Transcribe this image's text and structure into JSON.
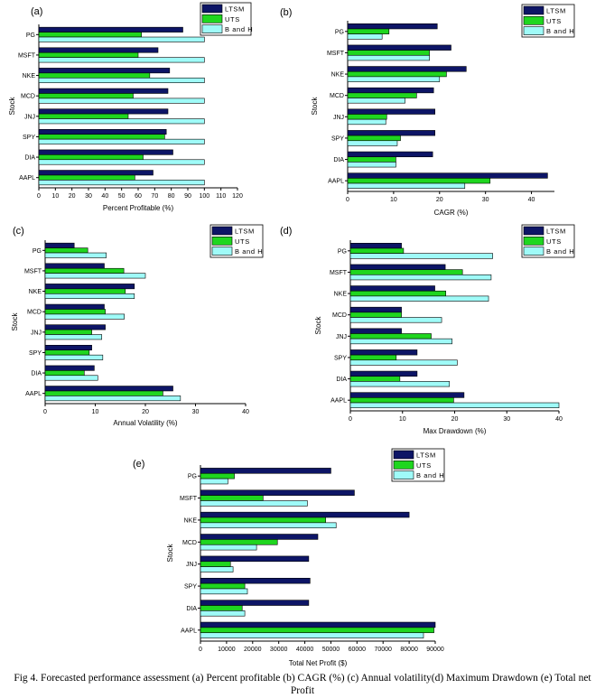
{
  "caption": "Fig 4. Forecasted performance assessment (a) Percent profitable (b) CAGR (%) (c) Annual volatility(d) Maximum Drawdown (e) Total net Profit",
  "colors": {
    "LTSM": "#0d1566",
    "UTS": "#1fd61f",
    "B and H": "#9ffbf8"
  },
  "chart_data": [
    {
      "panel": "(a)",
      "type": "bar",
      "categories": [
        "PG",
        "MSFT",
        "NKE",
        "MCD",
        "JNJ",
        "SPY",
        "DIA",
        "AAPL"
      ],
      "series": [
        {
          "name": "LTSM",
          "values": [
            87,
            72,
            79,
            78,
            78,
            77,
            81,
            69
          ]
        },
        {
          "name": "UTS",
          "values": [
            62,
            60,
            67,
            57,
            54,
            76,
            63,
            58
          ]
        },
        {
          "name": "B and H",
          "values": [
            100,
            100,
            100,
            100,
            100,
            100,
            100,
            100
          ]
        }
      ],
      "xlabel": "Percent Profitable (%)",
      "ylabel": "Stock",
      "xlim": [
        0,
        120
      ],
      "xticks": [
        "0",
        "10",
        "20",
        "30",
        "40",
        "50",
        "60",
        "70",
        "80",
        "90",
        "100",
        "110",
        "120"
      ],
      "legend": "top-right"
    },
    {
      "panel": "(b)",
      "type": "bar",
      "categories": [
        "PG",
        "MSFT",
        "NKE",
        "MCD",
        "JNJ",
        "SPY",
        "DIA",
        "AAPL"
      ],
      "series": [
        {
          "name": "LTSM",
          "values": [
            19.5,
            22.5,
            25.8,
            18.7,
            19,
            19,
            18.5,
            43.5
          ]
        },
        {
          "name": "UTS",
          "values": [
            9,
            17.8,
            21.5,
            15,
            8.5,
            11.5,
            10.5,
            31
          ]
        },
        {
          "name": "B and H",
          "values": [
            7.5,
            17.8,
            20,
            12.5,
            8.3,
            10.8,
            10.5,
            25.5
          ]
        }
      ],
      "xlabel": "CAGR (%)",
      "ylabel": "Stock",
      "xlim": [
        0,
        45
      ],
      "xticks": [
        "0",
        "10",
        "20",
        "30",
        "40"
      ],
      "legend": "top-right"
    },
    {
      "panel": "(c)",
      "type": "bar",
      "categories": [
        "PG",
        "MSFT",
        "NKE",
        "MCD",
        "JNJ",
        "SPY",
        "DIA",
        "AAPL"
      ],
      "series": [
        {
          "name": "LTSM",
          "values": [
            5.8,
            11.8,
            17.8,
            11.8,
            12,
            9.3,
            9.8,
            25.5
          ]
        },
        {
          "name": "UTS",
          "values": [
            8.5,
            15.7,
            16,
            12,
            9.3,
            8.8,
            7.8,
            23.5
          ]
        },
        {
          "name": "B and H",
          "values": [
            12.2,
            20,
            17.8,
            15.8,
            11.3,
            11.5,
            10.5,
            27
          ]
        }
      ],
      "xlabel": "Annual Volatility (%)",
      "ylabel": "Stock",
      "xlim": [
        0,
        40
      ],
      "xticks": [
        "0",
        "10",
        "20",
        "30",
        "40"
      ],
      "legend": "top-right"
    },
    {
      "panel": "(d)",
      "type": "bar",
      "categories": [
        "PG",
        "MSFT",
        "NKE",
        "MCD",
        "JNJ",
        "SPY",
        "DIA",
        "AAPL"
      ],
      "series": [
        {
          "name": "LTSM",
          "values": [
            9.8,
            18.2,
            16.2,
            9.8,
            9.8,
            12.8,
            12.8,
            21.8
          ]
        },
        {
          "name": "UTS",
          "values": [
            10.2,
            21.5,
            18.3,
            9.8,
            15.5,
            8.8,
            9.5,
            19.8
          ]
        },
        {
          "name": "B and H",
          "values": [
            27.3,
            27,
            26.5,
            17.5,
            19.5,
            20.5,
            19,
            40
          ]
        }
      ],
      "xlabel": "Max Drawdown (%)",
      "ylabel": "Stock",
      "xlim": [
        0,
        40
      ],
      "xticks": [
        "0",
        "10",
        "20",
        "30",
        "40"
      ],
      "legend": "top-right"
    },
    {
      "panel": "(e)",
      "type": "bar",
      "categories": [
        "PG",
        "MSFT",
        "NKE",
        "MCD",
        "JNJ",
        "SPY",
        "DIA",
        "AAPL"
      ],
      "series": [
        {
          "name": "LTSM",
          "values": [
            50000,
            59000,
            80000,
            45000,
            41500,
            42000,
            41500,
            90000
          ]
        },
        {
          "name": "UTS",
          "values": [
            13000,
            24000,
            48000,
            29500,
            11500,
            17000,
            16000,
            89500
          ]
        },
        {
          "name": "B and H",
          "values": [
            10500,
            41000,
            52000,
            21500,
            12500,
            18000,
            17000,
            85500
          ]
        }
      ],
      "xlabel": "Total Net Profit ($)",
      "ylabel": "Stock",
      "xlim": [
        0,
        90000
      ],
      "xticks": [
        "0",
        "10000",
        "20000",
        "30000",
        "40000",
        "50000",
        "60000",
        "70000",
        "80000",
        "90000"
      ],
      "legend": "top-right"
    }
  ]
}
